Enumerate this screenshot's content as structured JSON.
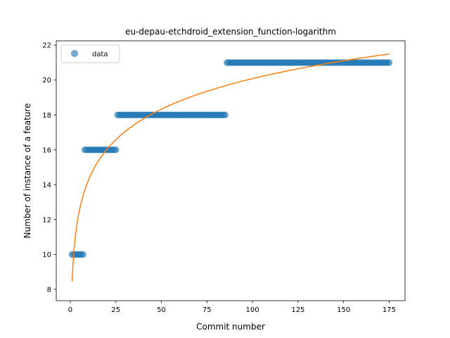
{
  "chart_data": {
    "type": "scatter",
    "title": "eu-depau-etchdroid_extension_function-logarithm",
    "xlabel": "Commit number",
    "ylabel": "Number of instance of a feature",
    "xlim": [
      -7.7,
      183.7
    ],
    "ylim": [
      7.35,
      22.25
    ],
    "xticks": [
      0,
      25,
      50,
      75,
      100,
      125,
      150,
      175
    ],
    "yticks": [
      8,
      10,
      12,
      14,
      16,
      18,
      20,
      22
    ],
    "legend": {
      "position": "top-left",
      "entries": [
        "data"
      ]
    },
    "colors": {
      "data": "#1f77b4",
      "fit": "#ff7f0e"
    },
    "series": [
      {
        "name": "data",
        "kind": "scatter",
        "segments": [
          {
            "x_start": 1,
            "x_end": 7,
            "y": 10
          },
          {
            "x_start": 8,
            "x_end": 25,
            "y": 16
          },
          {
            "x_start": 26,
            "x_end": 85,
            "y": 18
          },
          {
            "x_start": 86,
            "x_end": 175,
            "y": 21
          }
        ]
      },
      {
        "kind": "line",
        "model": "logarithmic",
        "coefficients": {
          "a": 8.45,
          "b": 2.526
        },
        "x_range": [
          1,
          175
        ]
      }
    ]
  }
}
